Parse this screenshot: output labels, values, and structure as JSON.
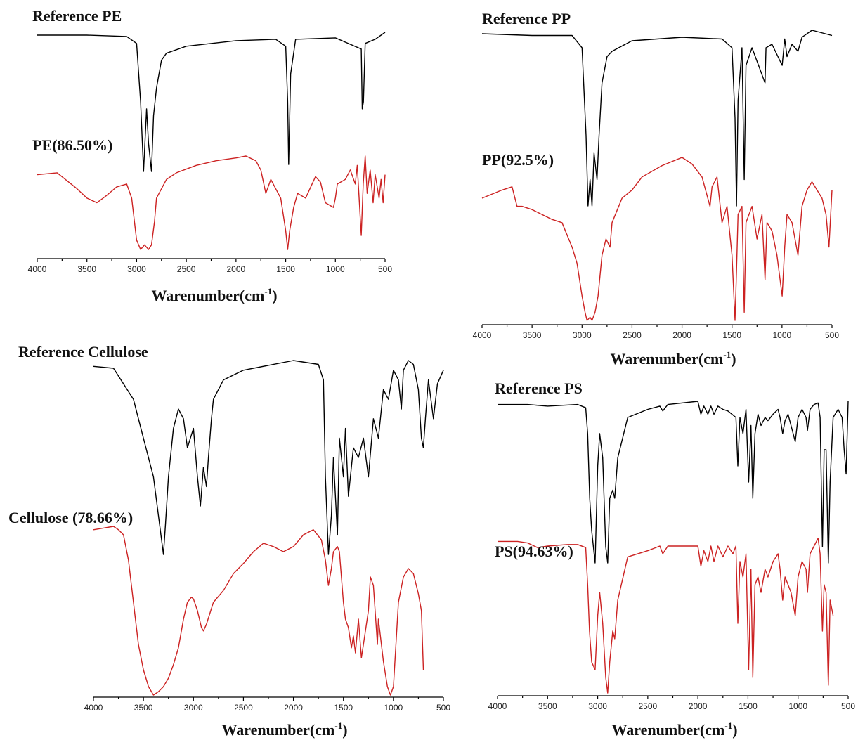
{
  "chart_data": [
    {
      "type": "line",
      "panel": "PE",
      "x_ticks": [
        4000,
        3500,
        3000,
        2500,
        2000,
        1500,
        1000,
        500
      ],
      "xlim": [
        4000,
        500
      ],
      "xlabel_main": "Warenumber(cm",
      "xlabel_sup": "-1",
      "xlabel_tail": ")",
      "series": [
        {
          "name": "Reference PE",
          "color": "#000000",
          "x": [
            4000,
            3500,
            3100,
            3000,
            2960,
            2930,
            2900,
            2880,
            2850,
            2830,
            2800,
            2750,
            2700,
            2500,
            2000,
            1600,
            1500,
            1480,
            1470,
            1450,
            1400,
            1000,
            740,
            730,
            718,
            700,
            600,
            500
          ],
          "y": [
            0.02,
            0.02,
            0.03,
            0.08,
            0.5,
            1.0,
            0.55,
            0.8,
            1.0,
            0.6,
            0.4,
            0.2,
            0.15,
            0.1,
            0.06,
            0.05,
            0.1,
            0.5,
            0.95,
            0.3,
            0.05,
            0.04,
            0.12,
            0.55,
            0.5,
            0.08,
            0.05,
            0.0
          ]
        },
        {
          "name": "PE(86.50%)",
          "color": "#cc2222",
          "x": [
            4000,
            3800,
            3600,
            3500,
            3400,
            3300,
            3200,
            3100,
            3050,
            3000,
            2960,
            2920,
            2880,
            2850,
            2820,
            2800,
            2750,
            2700,
            2600,
            2400,
            2200,
            2000,
            1900,
            1800,
            1750,
            1700,
            1650,
            1600,
            1550,
            1500,
            1480,
            1460,
            1420,
            1380,
            1300,
            1200,
            1150,
            1100,
            1020,
            1000,
            980,
            900,
            850,
            800,
            780,
            740,
            720,
            700,
            680,
            650,
            620,
            600,
            560,
            540,
            520,
            500
          ],
          "y": [
            0.2,
            0.18,
            0.35,
            0.45,
            0.5,
            0.42,
            0.33,
            0.3,
            0.45,
            0.9,
            1.0,
            0.95,
            1.0,
            0.95,
            0.7,
            0.45,
            0.35,
            0.25,
            0.18,
            0.1,
            0.05,
            0.02,
            0.0,
            0.05,
            0.15,
            0.4,
            0.25,
            0.35,
            0.45,
            0.8,
            1.0,
            0.8,
            0.55,
            0.4,
            0.45,
            0.22,
            0.28,
            0.5,
            0.55,
            0.45,
            0.3,
            0.25,
            0.15,
            0.3,
            0.1,
            0.85,
            0.3,
            0.0,
            0.4,
            0.15,
            0.5,
            0.2,
            0.45,
            0.25,
            0.5,
            0.2
          ]
        }
      ]
    },
    {
      "type": "line",
      "panel": "PP",
      "x_ticks": [
        4000,
        3500,
        3000,
        2500,
        2000,
        1500,
        1000,
        500
      ],
      "xlim": [
        4000,
        500
      ],
      "xlabel_main": "Warenumber(cm",
      "xlabel_sup": "-1",
      "xlabel_tail": ")",
      "series": [
        {
          "name": "Reference PP",
          "color": "#000000",
          "x": [
            4000,
            3500,
            3100,
            3000,
            2960,
            2940,
            2920,
            2900,
            2880,
            2850,
            2830,
            2800,
            2750,
            2700,
            2500,
            2000,
            1600,
            1500,
            1470,
            1455,
            1440,
            1400,
            1378,
            1360,
            1300,
            1170,
            1160,
            1100,
            998,
            973,
            950,
            900,
            840,
            800,
            700,
            500
          ],
          "y": [
            0.02,
            0.03,
            0.03,
            0.1,
            0.6,
            1.0,
            0.85,
            1.0,
            0.7,
            0.85,
            0.6,
            0.3,
            0.15,
            0.12,
            0.06,
            0.04,
            0.05,
            0.1,
            0.5,
            1.0,
            0.4,
            0.1,
            0.85,
            0.2,
            0.1,
            0.3,
            0.1,
            0.08,
            0.2,
            0.05,
            0.15,
            0.08,
            0.12,
            0.04,
            0.0,
            0.03
          ]
        },
        {
          "name": "PP(92.5%)",
          "color": "#cc2222",
          "x": [
            4000,
            3800,
            3700,
            3650,
            3600,
            3500,
            3400,
            3300,
            3200,
            3100,
            3050,
            3000,
            2970,
            2950,
            2920,
            2900,
            2870,
            2840,
            2800,
            2760,
            2720,
            2700,
            2600,
            2500,
            2400,
            2200,
            2000,
            1900,
            1800,
            1720,
            1700,
            1650,
            1600,
            1550,
            1500,
            1470,
            1455,
            1440,
            1400,
            1378,
            1360,
            1300,
            1250,
            1200,
            1170,
            1150,
            1100,
            1050,
            998,
            973,
            950,
            900,
            840,
            800,
            750,
            700,
            650,
            600,
            560,
            530,
            500
          ],
          "y": [
            0.25,
            0.2,
            0.18,
            0.3,
            0.3,
            0.32,
            0.35,
            0.38,
            0.4,
            0.55,
            0.65,
            0.85,
            0.95,
            1.0,
            0.98,
            1.0,
            0.95,
            0.85,
            0.6,
            0.5,
            0.55,
            0.4,
            0.25,
            0.2,
            0.12,
            0.05,
            0.0,
            0.04,
            0.12,
            0.3,
            0.18,
            0.12,
            0.4,
            0.3,
            0.6,
            1.0,
            0.7,
            0.35,
            0.3,
            0.95,
            0.4,
            0.3,
            0.5,
            0.35,
            0.75,
            0.4,
            0.45,
            0.6,
            0.85,
            0.55,
            0.35,
            0.4,
            0.6,
            0.3,
            0.2,
            0.15,
            0.2,
            0.25,
            0.35,
            0.55,
            0.2
          ]
        }
      ]
    },
    {
      "type": "line",
      "panel": "Cellulose",
      "x_ticks": [
        4000,
        3500,
        3000,
        2500,
        2000,
        1500,
        1000,
        500
      ],
      "xlim": [
        4000,
        500
      ],
      "xlabel_main": "Warenumber(cm",
      "xlabel_sup": "-1",
      "xlabel_tail": ")",
      "series": [
        {
          "name": "Reference Cellulose",
          "color": "#000000",
          "x": [
            4000,
            3800,
            3600,
            3500,
            3400,
            3350,
            3300,
            3280,
            3250,
            3200,
            3150,
            3100,
            3060,
            3000,
            2960,
            2930,
            2900,
            2870,
            2850,
            2820,
            2800,
            2700,
            2500,
            2000,
            1750,
            1700,
            1680,
            1650,
            1620,
            1600,
            1560,
            1540,
            1500,
            1480,
            1450,
            1400,
            1350,
            1300,
            1250,
            1200,
            1150,
            1100,
            1050,
            1000,
            950,
            920,
            900,
            850,
            800,
            750,
            720,
            700,
            680,
            650,
            600,
            560,
            500
          ],
          "y": [
            0.03,
            0.04,
            0.2,
            0.4,
            0.6,
            0.8,
            1.0,
            0.85,
            0.6,
            0.35,
            0.25,
            0.3,
            0.45,
            0.35,
            0.6,
            0.75,
            0.55,
            0.65,
            0.5,
            0.3,
            0.2,
            0.1,
            0.05,
            0.0,
            0.02,
            0.1,
            0.6,
            1.0,
            0.8,
            0.5,
            0.9,
            0.4,
            0.6,
            0.35,
            0.7,
            0.45,
            0.5,
            0.4,
            0.6,
            0.3,
            0.4,
            0.15,
            0.2,
            0.05,
            0.1,
            0.25,
            0.05,
            0.0,
            0.02,
            0.15,
            0.4,
            0.45,
            0.3,
            0.1,
            0.3,
            0.12,
            0.05
          ]
        },
        {
          "name": "Cellulose (78.66%)",
          "color": "#cc2222",
          "x": [
            4000,
            3900,
            3800,
            3750,
            3700,
            3650,
            3600,
            3550,
            3500,
            3450,
            3400,
            3350,
            3300,
            3250,
            3200,
            3150,
            3100,
            3060,
            3020,
            3000,
            2960,
            2920,
            2900,
            2870,
            2800,
            2700,
            2600,
            2500,
            2400,
            2300,
            2200,
            2100,
            2000,
            1900,
            1800,
            1720,
            1680,
            1650,
            1620,
            1600,
            1560,
            1540,
            1500,
            1480,
            1450,
            1420,
            1400,
            1380,
            1350,
            1320,
            1300,
            1250,
            1230,
            1200,
            1160,
            1150,
            1100,
            1060,
            1030,
            1000,
            950,
            900,
            850,
            800,
            750,
            720,
            700
          ],
          "y": [
            0.02,
            0.01,
            0.0,
            0.02,
            0.05,
            0.2,
            0.45,
            0.7,
            0.85,
            0.95,
            1.0,
            0.98,
            0.95,
            0.9,
            0.82,
            0.72,
            0.55,
            0.45,
            0.42,
            0.43,
            0.5,
            0.6,
            0.62,
            0.58,
            0.45,
            0.38,
            0.28,
            0.22,
            0.15,
            0.1,
            0.12,
            0.15,
            0.12,
            0.05,
            0.02,
            0.08,
            0.2,
            0.35,
            0.25,
            0.15,
            0.12,
            0.15,
            0.45,
            0.55,
            0.6,
            0.72,
            0.65,
            0.75,
            0.55,
            0.78,
            0.7,
            0.5,
            0.3,
            0.35,
            0.7,
            0.55,
            0.8,
            0.95,
            1.0,
            0.95,
            0.45,
            0.3,
            0.25,
            0.28,
            0.4,
            0.5,
            0.85
          ]
        }
      ]
    },
    {
      "type": "line",
      "panel": "PS",
      "x_ticks": [
        4000,
        3500,
        3000,
        2500,
        2000,
        1500,
        1000,
        500
      ],
      "xlim": [
        4000,
        500
      ],
      "xlabel_main": "Warenumber(cm",
      "xlabel_sup": "-1",
      "xlabel_tail": ")",
      "series": [
        {
          "name": "Reference PS",
          "color": "#000000",
          "x": [
            4000,
            3700,
            3500,
            3200,
            3120,
            3100,
            3080,
            3060,
            3026,
            3000,
            2980,
            2950,
            2920,
            2900,
            2880,
            2850,
            2830,
            2800,
            2700,
            2500,
            2380,
            2350,
            2300,
            2000,
            1970,
            1940,
            1900,
            1870,
            1840,
            1800,
            1750,
            1700,
            1620,
            1601,
            1580,
            1550,
            1520,
            1493,
            1470,
            1452,
            1430,
            1400,
            1370,
            1330,
            1300,
            1250,
            1200,
            1180,
            1154,
            1130,
            1100,
            1070,
            1028,
            1000,
            960,
            920,
            906,
            880,
            840,
            800,
            780,
            757,
            740,
            720,
            698,
            680,
            650,
            600,
            560,
            540,
            520,
            500
          ],
          "y": [
            0.02,
            0.02,
            0.03,
            0.02,
            0.04,
            0.2,
            0.6,
            0.8,
            1.0,
            0.4,
            0.2,
            0.35,
            0.9,
            1.0,
            0.6,
            0.55,
            0.6,
            0.35,
            0.1,
            0.05,
            0.03,
            0.06,
            0.02,
            0.0,
            0.08,
            0.03,
            0.08,
            0.03,
            0.08,
            0.03,
            0.05,
            0.06,
            0.1,
            0.4,
            0.1,
            0.2,
            0.05,
            0.5,
            0.15,
            0.6,
            0.2,
            0.08,
            0.15,
            0.1,
            0.12,
            0.08,
            0.05,
            0.1,
            0.2,
            0.12,
            0.08,
            0.15,
            0.25,
            0.1,
            0.05,
            0.1,
            0.18,
            0.05,
            0.02,
            0.01,
            0.1,
            0.9,
            0.3,
            0.3,
            1.0,
            0.5,
            0.1,
            0.05,
            0.1,
            0.3,
            0.45,
            0.0
          ]
        },
        {
          "name": "PS(94.63%)",
          "color": "#cc2222",
          "x": [
            4000,
            3800,
            3700,
            3600,
            3500,
            3300,
            3200,
            3120,
            3100,
            3082,
            3060,
            3026,
            3000,
            2980,
            2950,
            2920,
            2900,
            2880,
            2850,
            2830,
            2800,
            2700,
            2500,
            2380,
            2350,
            2300,
            2000,
            1970,
            1940,
            1900,
            1870,
            1840,
            1800,
            1750,
            1700,
            1650,
            1620,
            1601,
            1580,
            1550,
            1520,
            1493,
            1470,
            1452,
            1430,
            1400,
            1370,
            1330,
            1300,
            1250,
            1200,
            1180,
            1154,
            1130,
            1100,
            1070,
            1028,
            1000,
            960,
            920,
            906,
            880,
            840,
            800,
            780,
            757,
            740,
            720,
            698,
            680,
            650
          ],
          "y": [
            0.02,
            0.02,
            0.03,
            0.06,
            0.05,
            0.04,
            0.04,
            0.06,
            0.3,
            0.6,
            0.8,
            0.85,
            0.5,
            0.35,
            0.55,
            0.9,
            1.0,
            0.8,
            0.6,
            0.65,
            0.4,
            0.12,
            0.08,
            0.05,
            0.1,
            0.05,
            0.05,
            0.18,
            0.08,
            0.15,
            0.05,
            0.15,
            0.05,
            0.12,
            0.05,
            0.1,
            0.05,
            0.55,
            0.15,
            0.25,
            0.1,
            0.85,
            0.2,
            0.9,
            0.3,
            0.25,
            0.35,
            0.2,
            0.25,
            0.15,
            0.1,
            0.2,
            0.4,
            0.25,
            0.3,
            0.35,
            0.5,
            0.25,
            0.15,
            0.2,
            0.35,
            0.1,
            0.05,
            0.0,
            0.1,
            0.6,
            0.3,
            0.35,
            0.95,
            0.4,
            0.5
          ]
        }
      ]
    }
  ]
}
